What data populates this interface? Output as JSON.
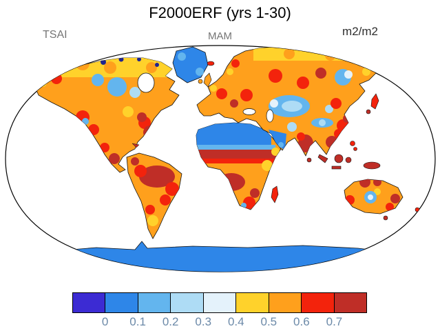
{
  "header": {
    "title": "F2000ERF (yrs 1-30)",
    "left_label": "TSAI",
    "center_label": "MAM",
    "right_label": "m2/m2"
  },
  "chart_data": {
    "type": "heatmap",
    "title": "F2000ERF (yrs 1-30)",
    "variable": "TSAI",
    "season": "MAM",
    "units": "m2/m2",
    "projection": "robinson-global-map",
    "colorbar": {
      "orientation": "horizontal",
      "levels": [
        0,
        0.1,
        0.2,
        0.3,
        0.4,
        0.5,
        0.6,
        0.7
      ],
      "tick_labels": [
        "0",
        "0.1",
        "0.2",
        "0.3",
        "0.4",
        "0.5",
        "0.6",
        "0.7"
      ],
      "colors": [
        "#3C2BD3",
        "#2E86E8",
        "#63B5EE",
        "#AEDCF5",
        "#E4F2FB",
        "#FFD22B",
        "#FFA01C",
        "#F3230C",
        "#BF2E27"
      ],
      "tick_color": "#6B89A8"
    },
    "map_colors": {
      "ocean": "#FFFFFF",
      "outline": "#111111",
      "low_value_blue": "#2E86E8",
      "mid_blue": "#63B5EE",
      "pale_blue": "#AEDCF5",
      "yellow": "#FFD22B",
      "orange": "#FFA01C",
      "red": "#F3230C",
      "dark_red": "#BF2E27"
    },
    "regions": [
      {
        "region": "Greenland",
        "approx_value": "0-0.2"
      },
      {
        "region": "Canadian Arctic islands",
        "approx_value": "0-0.1"
      },
      {
        "region": "Central Canada",
        "approx_value": "0.1-0.3"
      },
      {
        "region": "Northern Canada / Alaska",
        "approx_value": "0.4-0.6"
      },
      {
        "region": "Eastern North America",
        "approx_value": "0.6->0.7"
      },
      {
        "region": "Western United States",
        "approx_value": "0.2-0.6"
      },
      {
        "region": "Mexico / Central America",
        "approx_value": "0.6->0.7"
      },
      {
        "region": "Amazon Basin",
        "approx_value": ">0.7"
      },
      {
        "region": "Patagonia",
        "approx_value": "0.4-0.6"
      },
      {
        "region": "Sahara / Arabian Peninsula",
        "approx_value": "0-0.2"
      },
      {
        "region": "Sahel",
        "approx_value": "0.6->0.7"
      },
      {
        "region": "Congo Basin",
        "approx_value": ">0.7"
      },
      {
        "region": "Southern Africa",
        "approx_value": "0.5-0.7"
      },
      {
        "region": "Europe",
        "approx_value": "0.4-0.7"
      },
      {
        "region": "Central Asia / Kazakhstan",
        "approx_value": "0.1-0.3"
      },
      {
        "region": "Tibetan Plateau",
        "approx_value": "0.1-0.3"
      },
      {
        "region": "Siberia",
        "approx_value": "0.4-0.6"
      },
      {
        "region": "India",
        "approx_value": "0.6->0.7"
      },
      {
        "region": "Southeast Asia / Indonesia",
        "approx_value": ">0.7"
      },
      {
        "region": "Australia coastal",
        "approx_value": "0.5->0.7"
      },
      {
        "region": "Australia interior",
        "approx_value": "0.2-0.4"
      },
      {
        "region": "Antarctica",
        "approx_value": "0-0.1"
      }
    ]
  }
}
